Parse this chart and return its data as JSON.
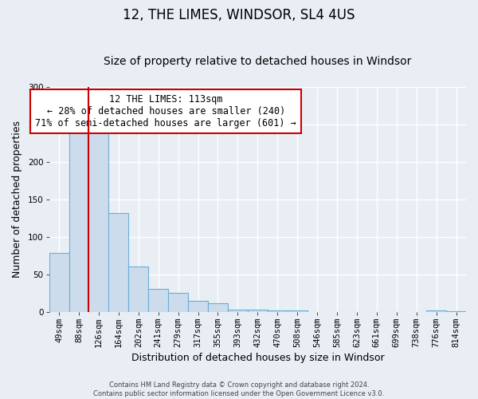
{
  "title": "12, THE LIMES, WINDSOR, SL4 4US",
  "subtitle": "Size of property relative to detached houses in Windsor",
  "xlabel": "Distribution of detached houses by size in Windsor",
  "ylabel": "Number of detached properties",
  "footer_line1": "Contains HM Land Registry data © Crown copyright and database right 2024.",
  "footer_line2": "Contains public sector information licensed under the Open Government Licence v3.0.",
  "bin_labels": [
    "49sqm",
    "88sqm",
    "126sqm",
    "164sqm",
    "202sqm",
    "241sqm",
    "279sqm",
    "317sqm",
    "355sqm",
    "393sqm",
    "432sqm",
    "470sqm",
    "508sqm",
    "546sqm",
    "585sqm",
    "623sqm",
    "661sqm",
    "699sqm",
    "738sqm",
    "776sqm",
    "814sqm"
  ],
  "bar_heights": [
    79,
    250,
    245,
    132,
    60,
    30,
    25,
    14,
    11,
    3,
    3,
    2,
    2,
    0,
    0,
    0,
    0,
    0,
    0,
    2,
    1
  ],
  "bar_color": "#ccdcec",
  "bar_edge_color": "#6baed6",
  "vline_color": "#cc0000",
  "vline_x_index": 1.5,
  "annotation_title": "12 THE LIMES: 113sqm",
  "annotation_line2": "← 28% of detached houses are smaller (240)",
  "annotation_line3": "71% of semi-detached houses are larger (601) →",
  "annotation_box_color": "#cc0000",
  "annotation_bg": "#ffffff",
  "ylim": [
    0,
    300
  ],
  "yticks": [
    0,
    50,
    100,
    150,
    200,
    250,
    300
  ],
  "background_color": "#e8eef4",
  "plot_bg_color": "#e8eef4",
  "grid_color": "#ffffff",
  "title_fontsize": 12,
  "subtitle_fontsize": 10,
  "axis_label_fontsize": 9,
  "tick_fontsize": 7.5
}
